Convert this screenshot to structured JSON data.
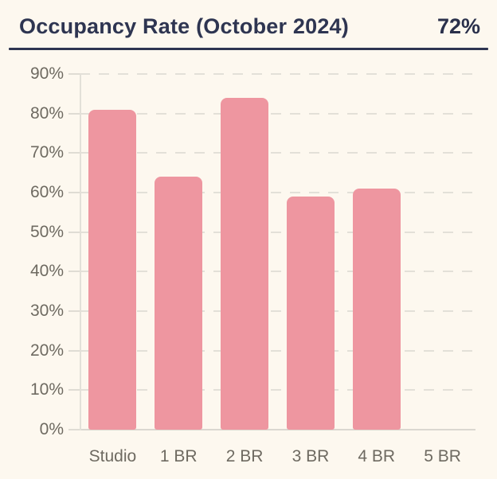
{
  "header": {
    "title": "Occupancy Rate (October 2024)",
    "value": "72%"
  },
  "chart_data": {
    "type": "bar",
    "title": "Occupancy Rate (October 2024)",
    "headline_value": "72%",
    "categories": [
      "Studio",
      "1 BR",
      "2 BR",
      "3 BR",
      "4 BR",
      "5 BR"
    ],
    "values": [
      81,
      64,
      84,
      59,
      61,
      0
    ],
    "xlabel": "",
    "ylabel": "",
    "ylim": [
      0,
      90
    ],
    "ytick_step": 10,
    "ytick_suffix": "%",
    "grid": "horizontal-dashed",
    "legend": "none",
    "bar_color": "#EE96A0",
    "background_color": "#FDF8EF",
    "title_color": "#2E3551",
    "axis_label_color": "#6E6A61",
    "gridline_color": "#E3E0D8"
  }
}
